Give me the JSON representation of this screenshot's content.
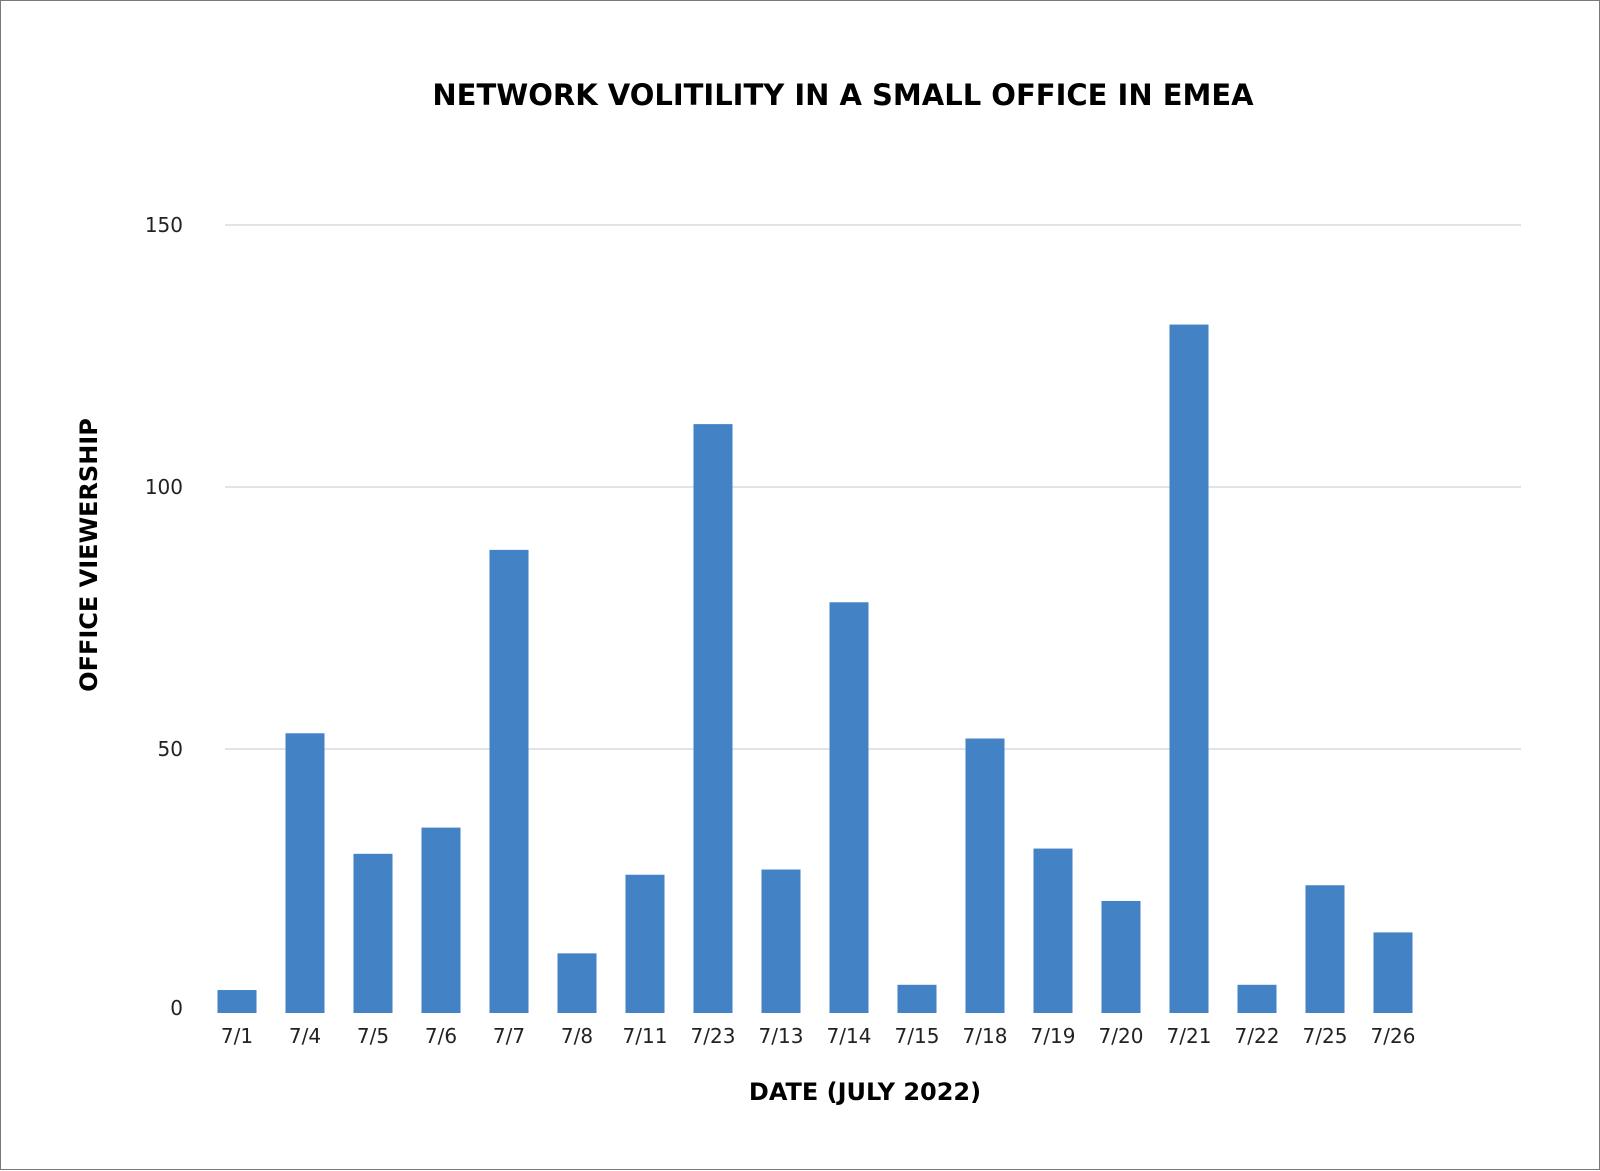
{
  "chart_data": {
    "type": "bar",
    "title": "NETWORK VOLITILITY IN A SMALL OFFICE IN EMEA",
    "xlabel": "DATE (JULY 2022)",
    "ylabel": "OFFICE VIEWERSHIP",
    "categories": [
      "7/1",
      "7/4",
      "7/5",
      "7/6",
      "7/7",
      "7/8",
      "7/11",
      "7/23",
      "7/13",
      "7/14",
      "7/15",
      "7/18",
      "7/19",
      "7/20",
      "7/21",
      "7/22",
      "7/25",
      "7/26"
    ],
    "values": [
      4,
      53,
      30,
      35,
      88,
      11,
      26,
      112,
      27,
      78,
      5,
      52,
      31,
      21,
      131,
      5,
      24,
      15
    ],
    "ylim": [
      0,
      150
    ],
    "yticks": [
      0,
      50,
      100,
      150
    ],
    "grid": true,
    "legend": "none",
    "bar_color": "#4282c5",
    "grid_color": "#e0e3e8"
  }
}
